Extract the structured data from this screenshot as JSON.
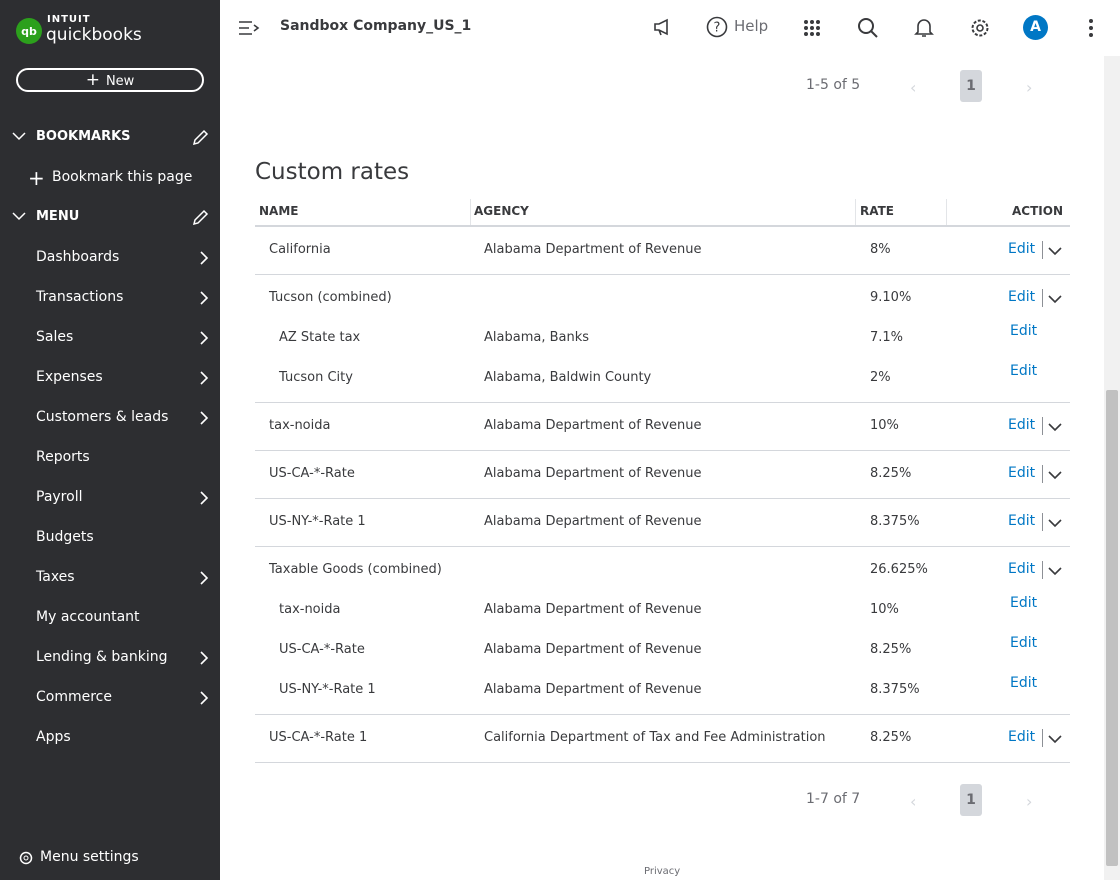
{
  "sidebar": {
    "logo_top": "INTUIT",
    "logo": "quickbooks",
    "new_button": "New",
    "bookmarks": "BOOKMARKS",
    "bookmark_page": "Bookmark this page",
    "menu": "MENU",
    "items": [
      {
        "label": "Dashboards",
        "arrow": true
      },
      {
        "label": "Transactions",
        "arrow": true
      },
      {
        "label": "Sales",
        "arrow": true
      },
      {
        "label": "Expenses",
        "arrow": true
      },
      {
        "label": "Customers & leads",
        "arrow": true
      },
      {
        "label": "Reports",
        "arrow": false
      },
      {
        "label": "Payroll",
        "arrow": true
      },
      {
        "label": "Budgets",
        "arrow": false
      },
      {
        "label": "Taxes",
        "arrow": true
      },
      {
        "label": "My accountant",
        "arrow": false
      },
      {
        "label": "Lending & banking",
        "arrow": true
      },
      {
        "label": "Commerce",
        "arrow": true
      },
      {
        "label": "Apps",
        "arrow": false
      }
    ],
    "menu_settings": "Menu settings"
  },
  "topbar": {
    "company": "Sandbox Company_US_1",
    "help": "Help",
    "avatar": "A"
  },
  "top_pagination": {
    "range": "1-5 of 5",
    "page": "1"
  },
  "custom_rates": {
    "title": "Custom rates",
    "columns": [
      "NAME",
      "AGENCY",
      "RATE",
      "ACTION"
    ],
    "rows": [
      {
        "name": "California",
        "agency": "Alabama Department of Revenue",
        "rate": "8%",
        "action": "Edit"
      },
      {
        "name": "Tucson (combined)",
        "rate": "9.10%",
        "action": "Edit",
        "children": [
          {
            "name": "AZ State tax",
            "agency": "Alabama, Banks",
            "rate": "7.1%",
            "action": "Edit"
          },
          {
            "name": "Tucson City",
            "agency": "Alabama, Baldwin County",
            "rate": "2%",
            "action": "Edit"
          }
        ]
      },
      {
        "name": "tax-noida",
        "agency": "Alabama Department of Revenue",
        "rate": "10%",
        "action": "Edit"
      },
      {
        "name": "US-CA-*-Rate",
        "agency": "Alabama Department of Revenue",
        "rate": "8.25%",
        "action": "Edit"
      },
      {
        "name": "US-NY-*-Rate 1",
        "agency": "Alabama Department of Revenue",
        "rate": "8.375%",
        "action": "Edit"
      },
      {
        "name": "Taxable Goods (combined)",
        "rate": "26.625%",
        "action": "Edit",
        "children": [
          {
            "name": "tax-noida",
            "agency": "Alabama Department of Revenue",
            "rate": "10%",
            "action": "Edit"
          },
          {
            "name": "US-CA-*-Rate",
            "agency": "Alabama Department of Revenue",
            "rate": "8.25%",
            "action": "Edit"
          },
          {
            "name": "US-NY-*-Rate 1",
            "agency": "Alabama Department of Revenue",
            "rate": "8.375%",
            "action": "Edit"
          }
        ]
      },
      {
        "name": "US-CA-*-Rate 1",
        "agency": "California Department of Tax and Fee Administration",
        "rate": "8.25%",
        "action": "Edit"
      }
    ],
    "pagination": {
      "range": "1-7 of 7",
      "page": "1"
    }
  },
  "footer": {
    "privacy": "Privacy"
  }
}
